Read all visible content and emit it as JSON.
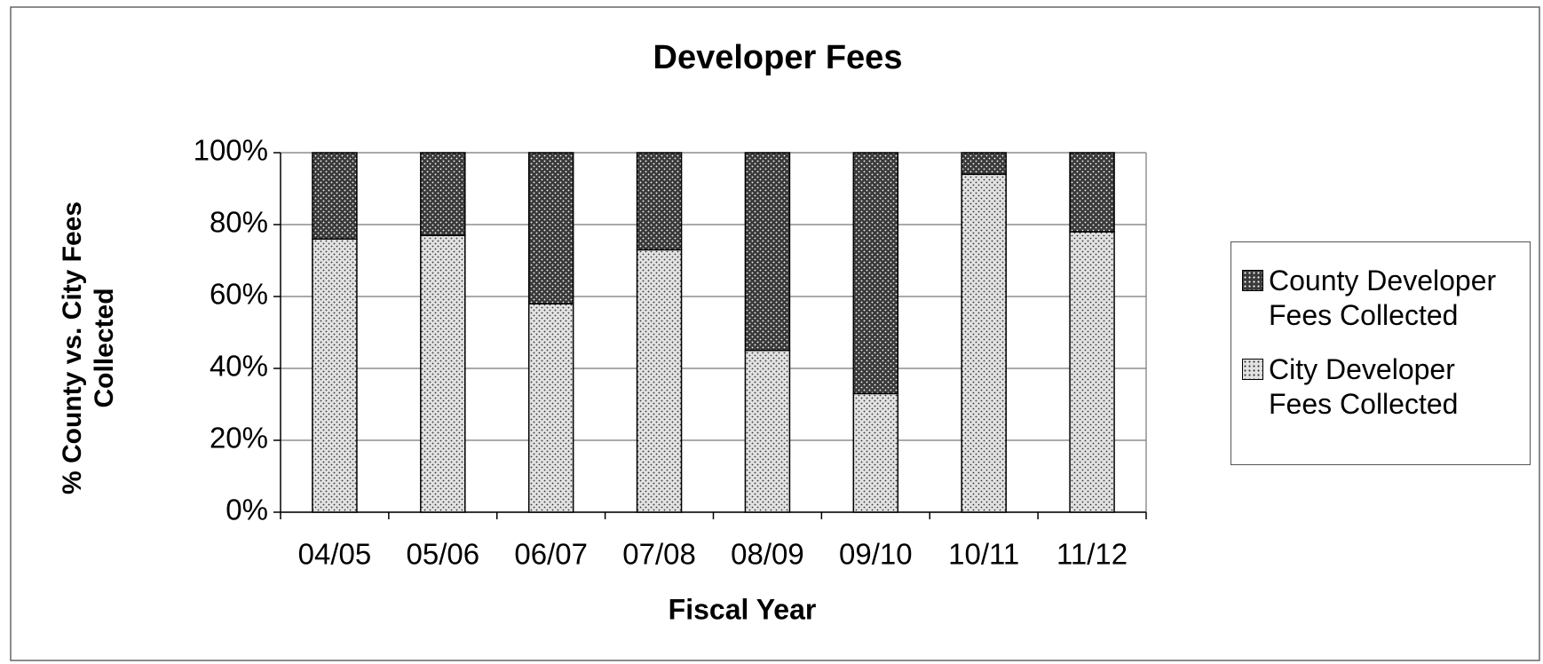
{
  "chart_data": {
    "type": "stacked_bar",
    "title": "Developer Fees",
    "x_label": "Fiscal Year",
    "y_label": "% County vs. City Fees Collected",
    "categories": [
      "04/05",
      "05/06",
      "06/07",
      "07/08",
      "08/09",
      "09/10",
      "10/11",
      "11/12"
    ],
    "series": [
      {
        "name": "County Developer Fees Collected",
        "color": "#3a3a3a",
        "values": [
          24,
          23,
          42,
          27,
          55,
          67,
          6,
          22
        ]
      },
      {
        "name": "City Developer Fees Collected",
        "color": "#e2e2e2",
        "values": [
          76,
          77,
          58,
          73,
          45,
          33,
          94,
          78
        ]
      }
    ],
    "ylim": [
      0,
      100
    ],
    "yticks": [
      {
        "value": 0,
        "label": "0%"
      },
      {
        "value": 20,
        "label": "20%"
      },
      {
        "value": 40,
        "label": "40%"
      },
      {
        "value": 60,
        "label": "60%"
      },
      {
        "value": 80,
        "label": "80%"
      },
      {
        "value": 100,
        "label": "100%"
      }
    ],
    "grid": true,
    "legend": "right"
  }
}
